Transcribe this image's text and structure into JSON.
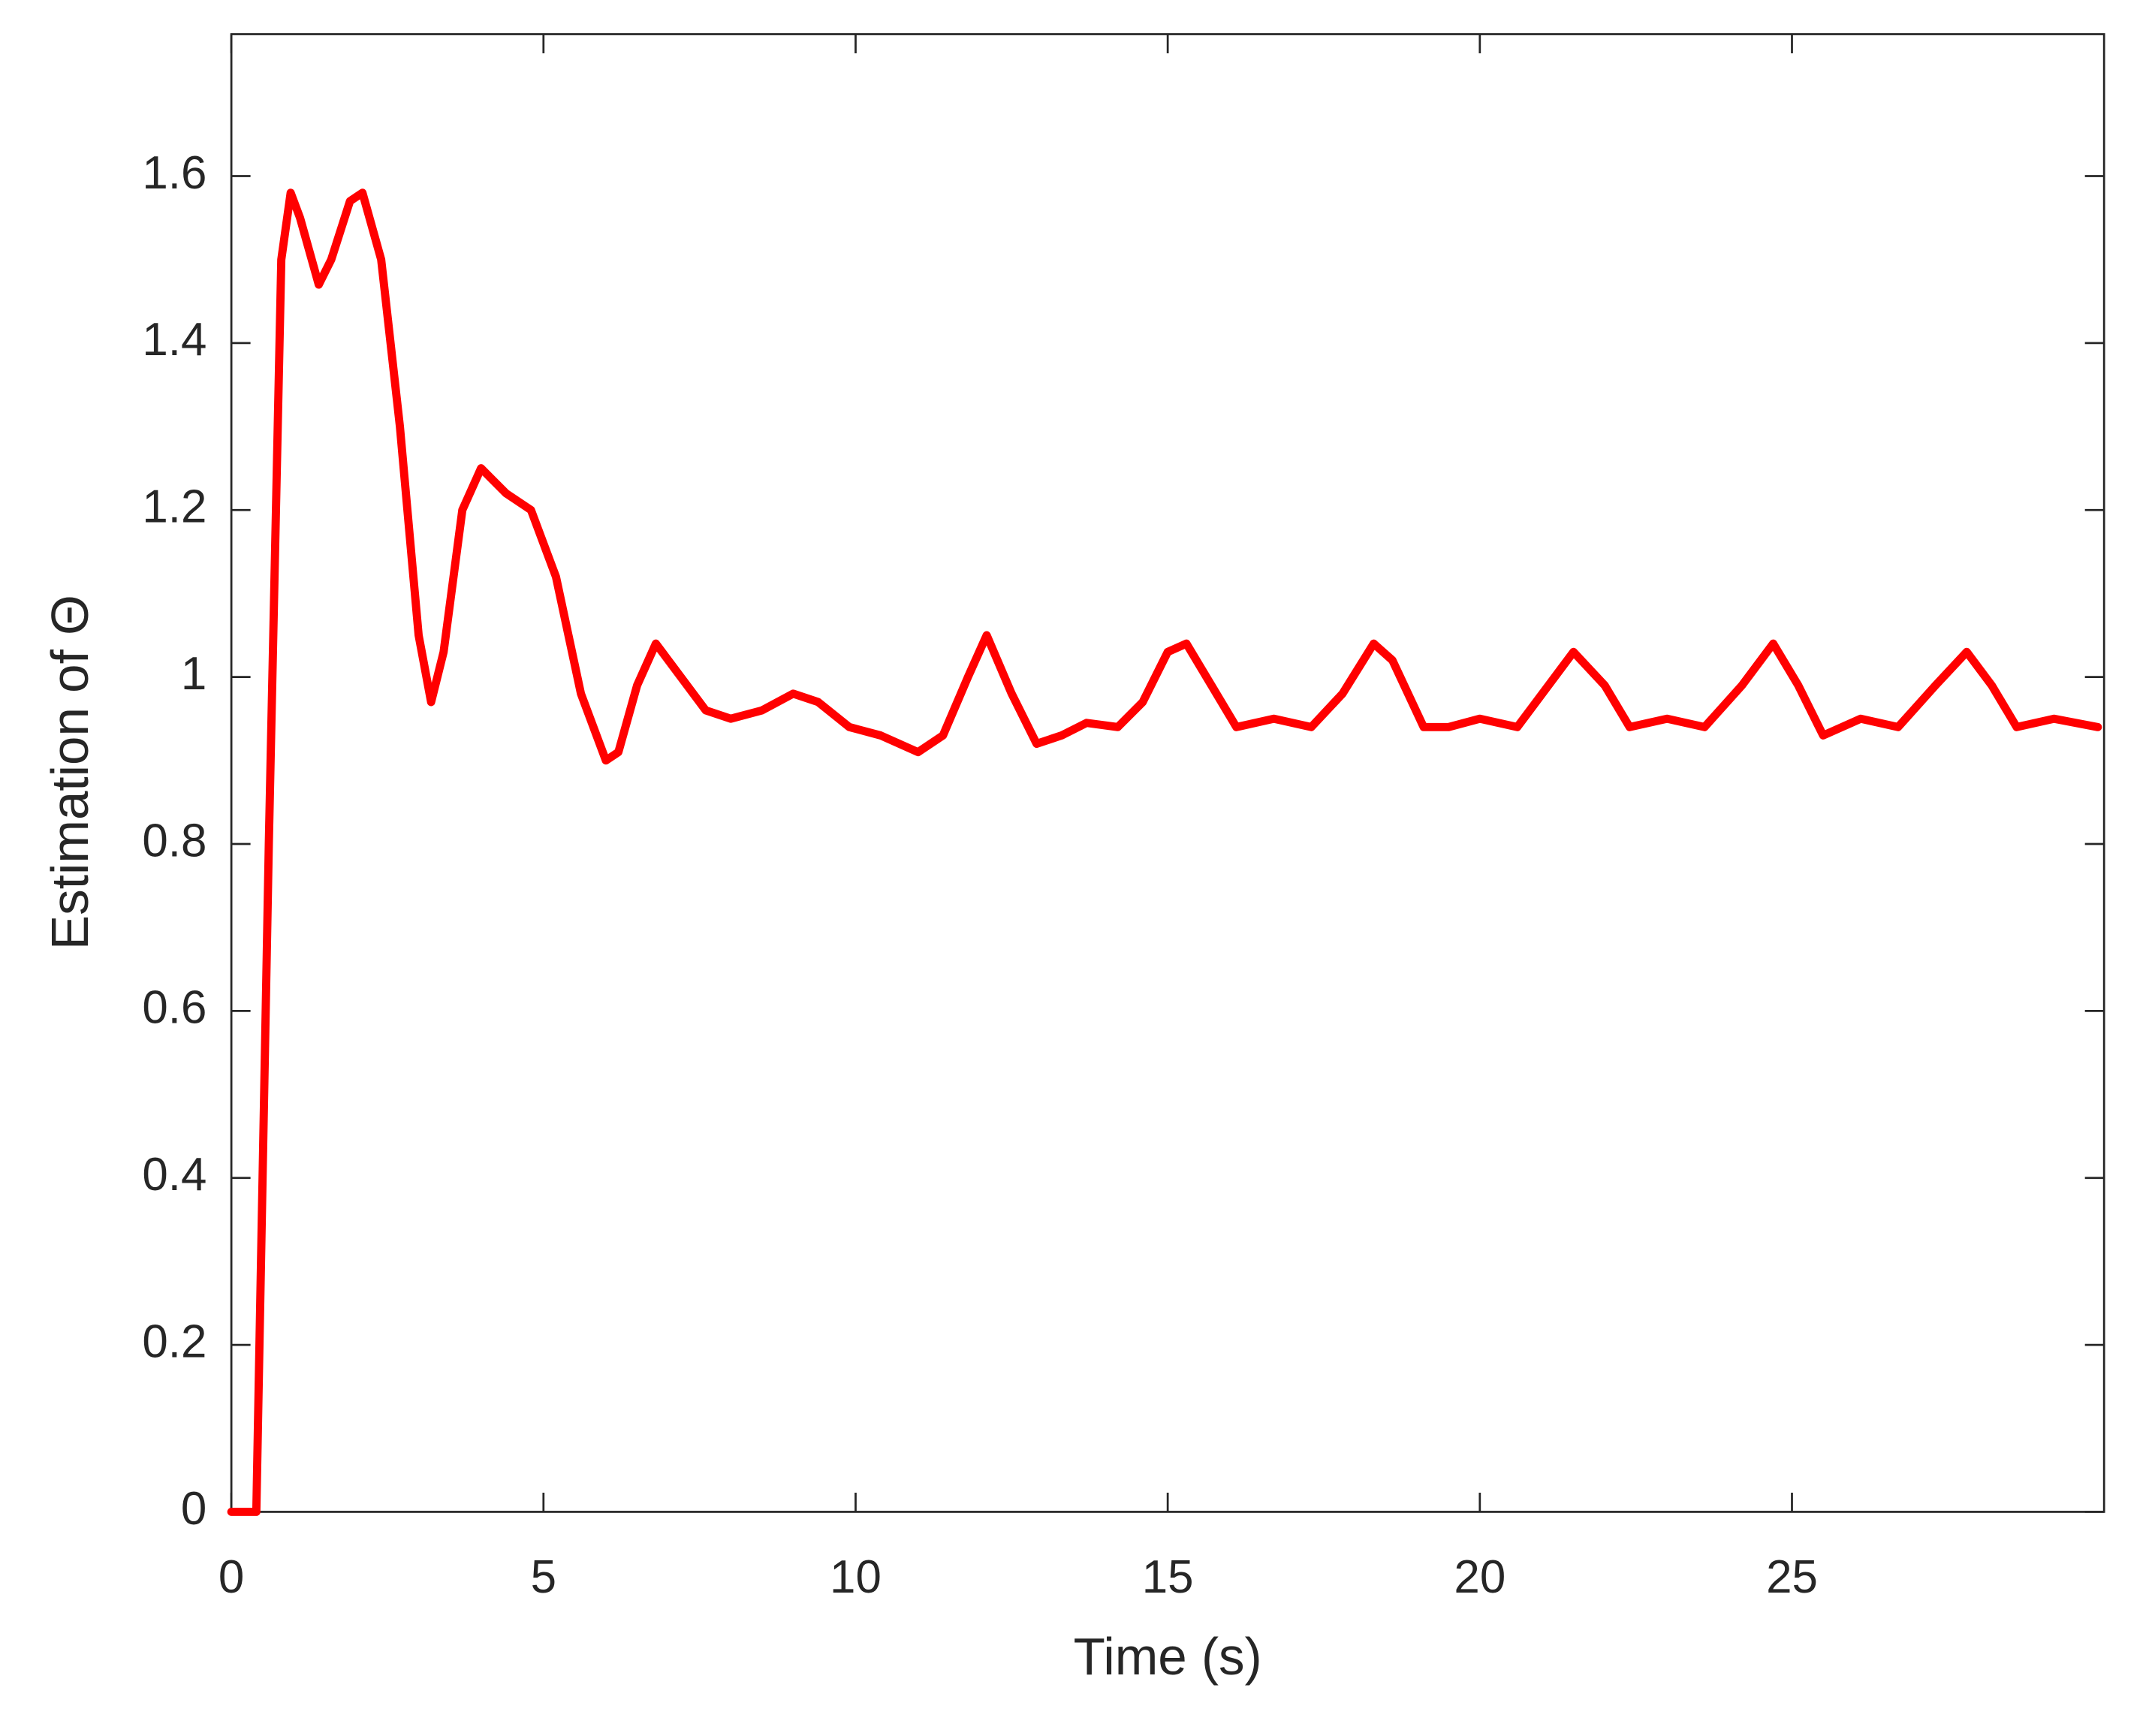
{
  "chart_data": {
    "type": "line",
    "xlabel": "Time (s)",
    "ylabel": "Estimation of Θ",
    "x": [
      0,
      0.3,
      0.4,
      0.6,
      0.8,
      0.95,
      1.1,
      1.4,
      1.6,
      1.9,
      2.1,
      2.4,
      2.7,
      3.0,
      3.2,
      3.4,
      3.7,
      4.0,
      4.4,
      4.8,
      5.2,
      5.6,
      6.0,
      6.2,
      6.5,
      6.8,
      7.2,
      7.6,
      8.0,
      8.5,
      9.0,
      9.4,
      9.9,
      10.4,
      11.0,
      11.4,
      11.8,
      12.1,
      12.5,
      12.9,
      13.3,
      13.7,
      14.2,
      14.6,
      15.0,
      15.3,
      15.7,
      16.1,
      16.7,
      17.3,
      17.8,
      18.3,
      18.6,
      19.1,
      19.5,
      20.0,
      20.6,
      21.1,
      21.5,
      22.0,
      22.4,
      23.0,
      23.6,
      24.2,
      24.7,
      25.1,
      25.5,
      26.1,
      26.7,
      27.3,
      27.8,
      28.2,
      28.6,
      29.2,
      29.9
    ],
    "series": [
      {
        "color": "#ff0000",
        "values": [
          0,
          0,
          0,
          0.8,
          1.5,
          1.58,
          1.55,
          1.47,
          1.5,
          1.57,
          1.58,
          1.5,
          1.3,
          1.05,
          0.97,
          1.03,
          1.2,
          1.25,
          1.22,
          1.2,
          1.12,
          0.98,
          0.9,
          0.91,
          0.99,
          1.04,
          1.0,
          0.96,
          0.95,
          0.96,
          0.98,
          0.97,
          0.94,
          0.93,
          0.91,
          0.93,
          1.0,
          1.05,
          0.98,
          0.92,
          0.93,
          0.945,
          0.94,
          0.97,
          1.03,
          1.04,
          0.99,
          0.94,
          0.95,
          0.94,
          0.98,
          1.04,
          1.02,
          0.94,
          0.94,
          0.95,
          0.94,
          0.99,
          1.03,
          0.99,
          0.94,
          0.95,
          0.94,
          0.99,
          1.04,
          0.99,
          0.93,
          0.95,
          0.94,
          0.99,
          1.03,
          0.99,
          0.94,
          0.95,
          0.94
        ]
      }
    ],
    "xlim": [
      0,
      30
    ],
    "xticks": [
      0,
      5,
      10,
      15,
      20,
      25
    ],
    "ylim": [
      0,
      1.77
    ],
    "yticks": [
      0,
      0.2,
      0.4,
      0.6,
      0.8,
      1,
      1.2,
      1.4,
      1.6
    ],
    "grid": false
  }
}
